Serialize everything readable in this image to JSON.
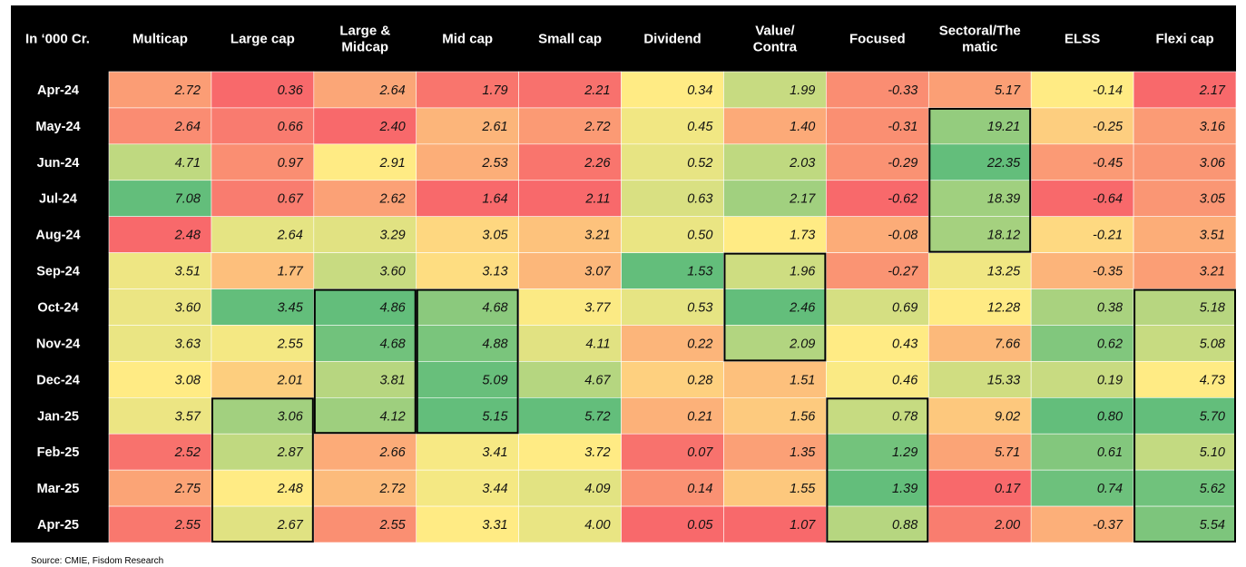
{
  "chart_data": {
    "type": "heatmap",
    "corner_label": "In ‘000 Cr.",
    "columns": [
      "Multicap",
      "Large cap",
      "Large & Midcap",
      "Mid cap",
      "Small cap",
      "Dividend",
      "Value/ Contra",
      "Focused",
      "Sectoral/The matic",
      "ELSS",
      "Flexi cap"
    ],
    "rows": [
      "Apr-24",
      "May-24",
      "Jun-24",
      "Jul-24",
      "Aug-24",
      "Sep-24",
      "Oct-24",
      "Nov-24",
      "Dec-24",
      "Jan-25",
      "Feb-25",
      "Mar-25",
      "Apr-25"
    ],
    "values": [
      [
        2.72,
        0.36,
        2.64,
        1.79,
        2.21,
        0.34,
        1.99,
        -0.33,
        5.17,
        -0.14,
        2.17
      ],
      [
        2.64,
        0.66,
        2.4,
        2.61,
        2.72,
        0.45,
        1.4,
        -0.31,
        19.21,
        -0.25,
        3.16
      ],
      [
        4.71,
        0.97,
        2.91,
        2.53,
        2.26,
        0.52,
        2.03,
        -0.29,
        22.35,
        -0.45,
        3.06
      ],
      [
        7.08,
        0.67,
        2.62,
        1.64,
        2.11,
        0.63,
        2.17,
        -0.62,
        18.39,
        -0.64,
        3.05
      ],
      [
        2.48,
        2.64,
        3.29,
        3.05,
        3.21,
        0.5,
        1.73,
        -0.08,
        18.12,
        -0.21,
        3.51
      ],
      [
        3.51,
        1.77,
        3.6,
        3.13,
        3.07,
        1.53,
        1.96,
        -0.27,
        13.25,
        -0.35,
        3.21
      ],
      [
        3.6,
        3.45,
        4.86,
        4.68,
        3.77,
        0.53,
        2.46,
        0.69,
        12.28,
        0.38,
        5.18
      ],
      [
        3.63,
        2.55,
        4.68,
        4.88,
        4.11,
        0.22,
        2.09,
        0.43,
        7.66,
        0.62,
        5.08
      ],
      [
        3.08,
        2.01,
        3.81,
        5.09,
        4.67,
        0.28,
        1.51,
        0.46,
        15.33,
        0.19,
        4.73
      ],
      [
        3.57,
        3.06,
        4.12,
        5.15,
        5.72,
        0.21,
        1.56,
        0.78,
        9.02,
        0.8,
        5.7
      ],
      [
        2.52,
        2.87,
        2.66,
        3.41,
        3.72,
        0.07,
        1.35,
        1.29,
        5.71,
        0.61,
        5.1
      ],
      [
        2.75,
        2.48,
        2.72,
        3.44,
        4.09,
        0.14,
        1.55,
        1.39,
        0.17,
        0.74,
        5.62
      ],
      [
        2.55,
        2.67,
        2.55,
        3.31,
        4.0,
        0.05,
        1.07,
        0.88,
        2.0,
        -0.37,
        5.54
      ]
    ],
    "color_scale": {
      "low": "#f8696b",
      "mid": "#ffeb84",
      "high": "#63be7b",
      "scope": "per-column"
    },
    "highlight_boxes": [
      {
        "column": "Large cap",
        "from_row": "Jan-25",
        "to_row": "Apr-25"
      },
      {
        "column": "Large & Midcap",
        "from_row": "Oct-24",
        "to_row": "Jan-25"
      },
      {
        "column": "Mid cap",
        "from_row": "Oct-24",
        "to_row": "Jan-25"
      },
      {
        "column": "Value/ Contra",
        "from_row": "Sep-24",
        "to_row": "Nov-24"
      },
      {
        "column": "Focused",
        "from_row": "Jan-25",
        "to_row": "Apr-25"
      },
      {
        "column": "Sectoral/The matic",
        "from_row": "May-24",
        "to_row": "Aug-24"
      },
      {
        "column": "Flexi cap",
        "from_row": "Oct-24",
        "to_row": "Apr-25"
      }
    ]
  },
  "source_note": "Source: CMIE, Fisdom Research"
}
